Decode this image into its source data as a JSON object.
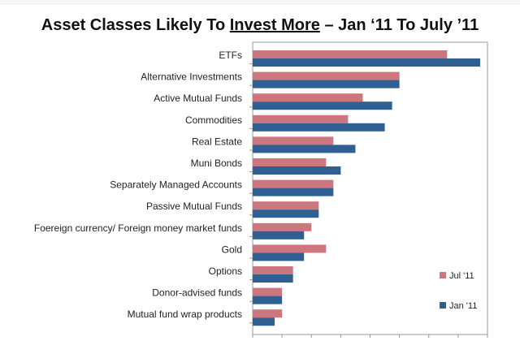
{
  "title": {
    "before": "Asset Classes Likely To ",
    "underlined": "Invest More",
    "after": " – Jan ‘11 To July ’11"
  },
  "chart_data": {
    "type": "bar",
    "orientation": "horizontal",
    "categories": [
      "ETFs",
      "Alternative Investments",
      "Active Mutual Funds",
      "Commodities",
      "Real Estate",
      "Muni Bonds",
      "Separately Managed Accounts",
      "Passive Mutual Funds",
      "Foereign currency/ Foreign money market funds",
      "Gold",
      "Options",
      "Donor-advised funds",
      "Mutual fund wrap products"
    ],
    "series": [
      {
        "name": "Jul '11",
        "color": "#cd767d",
        "values": [
          26.5,
          20,
          15,
          13,
          11,
          10,
          11,
          9,
          8,
          10,
          5.5,
          4,
          4
        ]
      },
      {
        "name": "Jan '11",
        "color": "#2f5f93",
        "values": [
          31,
          20,
          19,
          18,
          14,
          12,
          11,
          9,
          7,
          7,
          5.5,
          4,
          3
        ]
      }
    ],
    "xlim": [
      0,
      32
    ],
    "grid": false,
    "legend": "bottom-right"
  }
}
